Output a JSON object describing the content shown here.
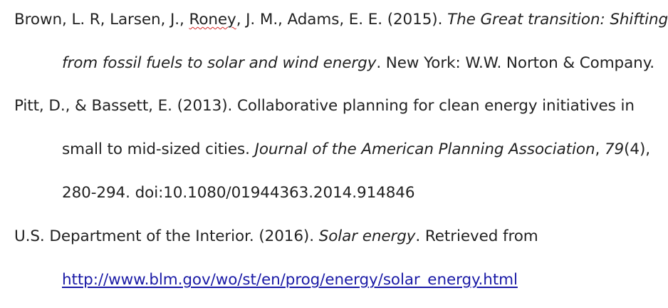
{
  "references": [
    {
      "authors_before": "Brown, L. R, Larsen, J., ",
      "flagged_word": "Roney",
      "authors_after": ", J. M., Adams, E. E. (2015). ",
      "title_line1": "The Great transition: Shifting",
      "title_line2": "from fossil fuels to solar and wind energy",
      "publisher": ". New York: W.W. Norton & Company."
    },
    {
      "line1": "Pitt, D., & Bassett, E. (2013). Collaborative planning for clean energy initiatives in",
      "line2_plain": "small to mid-sized cities. ",
      "journal": "Journal of the American Planning Association",
      "sep": ", ",
      "volume": "79",
      "issue_pages": "(4),",
      "line3": "280-294. doi:10.1080/01944363.2014.914846"
    },
    {
      "line1_plain": "U.S. Department of the Interior. (2016). ",
      "title": "Solar energy",
      "retrieved": ". Retrieved from",
      "url": "http://www.blm.gov/wo/st/en/prog/energy/solar_energy.html"
    }
  ],
  "colors": {
    "text": "#222222",
    "link": "#1a1aa6",
    "spellcheck_underline": "#d62b2b"
  }
}
